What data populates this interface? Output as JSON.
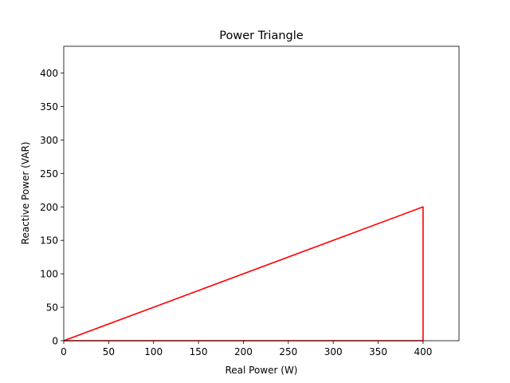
{
  "chart_data": {
    "type": "line",
    "title": "Power Triangle",
    "xlabel": "Real Power (W)",
    "ylabel": "Reactive Power (VAR)",
    "xlim": [
      0,
      440
    ],
    "ylim": [
      0,
      440
    ],
    "x_ticks": [
      0,
      50,
      100,
      150,
      200,
      250,
      300,
      350,
      400
    ],
    "y_ticks": [
      0,
      50,
      100,
      150,
      200,
      250,
      300,
      350,
      400
    ],
    "grid": false,
    "series": [
      {
        "color": "#ff0000",
        "points": [
          {
            "x": 0,
            "y": 0
          },
          {
            "x": 400,
            "y": 0
          },
          {
            "x": 400,
            "y": 200
          },
          {
            "x": 0,
            "y": 0
          }
        ]
      }
    ]
  }
}
